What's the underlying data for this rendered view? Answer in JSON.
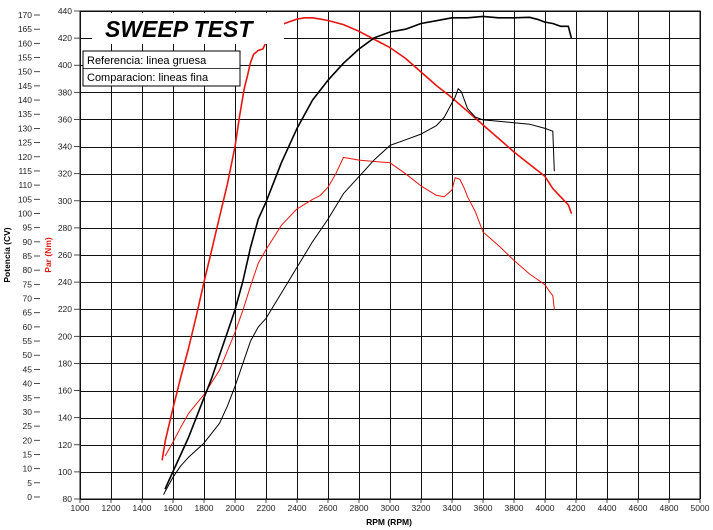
{
  "chart_data": {
    "type": "line",
    "title": "SWEEP TEST",
    "legend": [
      "Referencia: linea gruesa",
      "Comparacion: lineas fina"
    ],
    "xlabel": "RPM (RPM)",
    "ylabel_left": "Potencia (CV)",
    "ylabel_right": "Par (Nm)",
    "xlim": [
      1000,
      5000
    ],
    "ylim_power": [
      0,
      170
    ],
    "ylim_torque": [
      80,
      440
    ],
    "x_ticks": [
      1000,
      1200,
      1400,
      1600,
      1800,
      2000,
      2200,
      2400,
      2600,
      2800,
      3000,
      3200,
      3400,
      3600,
      3800,
      4000,
      4200,
      4400,
      4600,
      4800,
      5000
    ],
    "power_ticks": [
      0,
      5,
      10,
      15,
      20,
      25,
      30,
      35,
      40,
      45,
      50,
      55,
      60,
      65,
      70,
      75,
      80,
      85,
      90,
      95,
      100,
      105,
      110,
      115,
      120,
      125,
      130,
      135,
      140,
      145,
      150,
      155,
      160,
      165,
      170
    ],
    "torque_ticks": [
      80,
      100,
      120,
      140,
      160,
      180,
      200,
      220,
      240,
      260,
      280,
      300,
      320,
      340,
      360,
      380,
      400,
      420,
      440
    ],
    "colors": {
      "power": "#000000",
      "torque": "#e8150f",
      "grid": "#111111"
    },
    "series": [
      {
        "name": "Par referencia",
        "axis": "torque",
        "color": "#e8150f",
        "width": 1.6,
        "x": [
          1530,
          1550,
          1600,
          1650,
          1700,
          1750,
          1800,
          1850,
          1900,
          1950,
          2000,
          2030,
          2060,
          2080,
          2100,
          2120,
          2150,
          2180,
          2200,
          2250,
          2300,
          2350,
          2400,
          2450,
          2500,
          2550,
          2600,
          2700,
          2800,
          2900,
          3000,
          3100,
          3200,
          3300,
          3400,
          3500,
          3600,
          3700,
          3800,
          3900,
          4000,
          4050,
          4100,
          4150,
          4170
        ],
        "y": [
          109,
          123,
          147,
          170,
          191,
          215,
          240,
          264,
          288,
          312,
          340,
          363,
          383,
          392,
          402,
          408,
          411,
          412,
          417,
          424,
          430,
          432,
          434,
          435,
          435,
          434,
          433,
          430,
          425,
          419,
          413,
          405,
          395,
          385,
          376,
          366,
          356,
          346,
          336,
          327,
          318,
          309,
          303,
          297,
          291
        ]
      },
      {
        "name": "Par comparacion",
        "axis": "torque",
        "color": "#e8150f",
        "width": 1.0,
        "x": [
          1550,
          1600,
          1650,
          1700,
          1800,
          1900,
          2000,
          2050,
          2100,
          2150,
          2200,
          2300,
          2400,
          2500,
          2550,
          2600,
          2650,
          2700,
          2800,
          2900,
          3000,
          3100,
          3200,
          3300,
          3350,
          3400,
          3420,
          3450,
          3480,
          3500,
          3550,
          3600,
          3700,
          3800,
          3900,
          3950,
          4000,
          4030,
          4050,
          4060
        ],
        "y": [
          112,
          122,
          133,
          143,
          157,
          175,
          203,
          219,
          237,
          254,
          264,
          282,
          294,
          301,
          304,
          310,
          320,
          332,
          330,
          329,
          328,
          320,
          311,
          304,
          303,
          308,
          317,
          316,
          309,
          303,
          292,
          277,
          267,
          256,
          246,
          242,
          238,
          233,
          230,
          220
        ]
      },
      {
        "name": "Potencia referencia",
        "axis": "power",
        "color": "#000000",
        "width": 1.6,
        "x": [
          1550,
          1600,
          1650,
          1700,
          1750,
          1800,
          1850,
          1900,
          1950,
          2000,
          2050,
          2100,
          2150,
          2200,
          2300,
          2400,
          2500,
          2600,
          2700,
          2800,
          2900,
          3000,
          3100,
          3200,
          3300,
          3400,
          3500,
          3600,
          3700,
          3800,
          3900,
          3950,
          4000,
          4050,
          4100,
          4150,
          4170
        ],
        "y": [
          3,
          9,
          15,
          21,
          28,
          35,
          42,
          50,
          58,
          66,
          76,
          88,
          98,
          104,
          118,
          130,
          140,
          147,
          153,
          158,
          162,
          164,
          165,
          167,
          168,
          169,
          169,
          169.5,
          169,
          169,
          169.2,
          168.5,
          167.5,
          167,
          166,
          166,
          162
        ]
      },
      {
        "name": "Potencia comparacion",
        "axis": "power",
        "color": "#000000",
        "width": 1.0,
        "x": [
          1540,
          1560,
          1600,
          1650,
          1700,
          1800,
          1900,
          1950,
          2000,
          2050,
          2100,
          2150,
          2200,
          2300,
          2400,
          2500,
          2600,
          2700,
          2800,
          2900,
          3000,
          3100,
          3200,
          3300,
          3350,
          3400,
          3420,
          3440,
          3460,
          3480,
          3500,
          3550,
          3600,
          3700,
          3800,
          3900,
          4000,
          4050,
          4060
        ],
        "y": [
          1,
          3,
          7,
          11,
          14,
          19,
          26,
          32,
          39,
          47,
          55,
          60,
          63,
          72,
          81,
          90,
          98,
          107,
          113,
          119,
          124,
          126,
          128,
          131,
          134,
          139,
          141,
          144,
          143,
          140,
          137,
          134,
          133,
          132.5,
          132,
          131.5,
          130,
          129,
          115
        ]
      }
    ]
  }
}
